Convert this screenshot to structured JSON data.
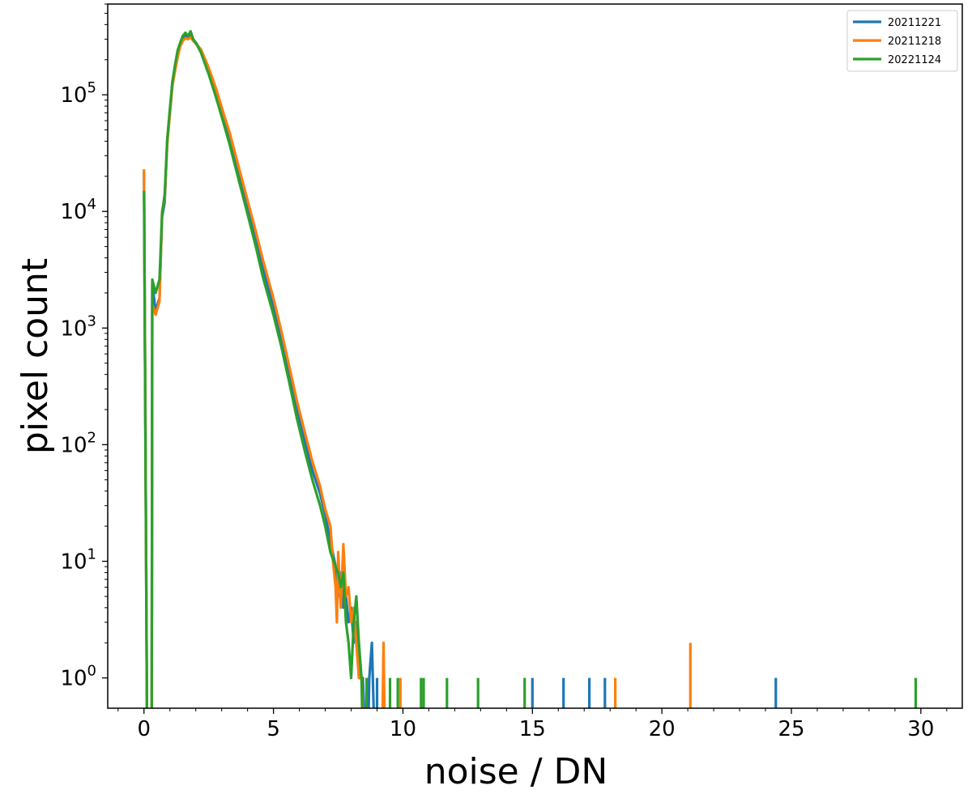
{
  "chart_data": {
    "type": "line",
    "xlabel": "noise / DN",
    "ylabel": "pixel count",
    "xlim": [
      -1.4,
      31.6
    ],
    "ylim": [
      0.55,
      600000
    ],
    "yscale": "log",
    "xticks": [
      0,
      5,
      10,
      15,
      20,
      25,
      30
    ],
    "xtick_labels": [
      "0",
      "5",
      "10",
      "15",
      "20",
      "25",
      "30"
    ],
    "yticks": [
      1,
      10,
      100,
      1000,
      10000,
      100000
    ],
    "ytick_labels": [
      {
        "base": "10",
        "exp": "0"
      },
      {
        "base": "10",
        "exp": "1"
      },
      {
        "base": "10",
        "exp": "2"
      },
      {
        "base": "10",
        "exp": "3"
      },
      {
        "base": "10",
        "exp": "4"
      },
      {
        "base": "10",
        "exp": "5"
      }
    ],
    "grid": false,
    "legend_position": "top-right",
    "series": [
      {
        "name": "20211221",
        "color": "#1f77b4",
        "points": [
          [
            0,
            22000
          ],
          [
            0.12,
            0.3
          ],
          [
            0.3,
            0.3
          ],
          [
            0.32,
            2400
          ],
          [
            0.45,
            1400
          ],
          [
            0.6,
            1800
          ],
          [
            0.7,
            9000
          ],
          [
            0.8,
            12000
          ],
          [
            0.9,
            40000
          ],
          [
            1.0,
            70000
          ],
          [
            1.1,
            130000
          ],
          [
            1.2,
            170000
          ],
          [
            1.3,
            220000
          ],
          [
            1.4,
            270000
          ],
          [
            1.5,
            300000
          ],
          [
            1.6,
            320000
          ],
          [
            1.7,
            310000
          ],
          [
            1.8,
            330000
          ],
          [
            1.9,
            300000
          ],
          [
            2.0,
            280000
          ],
          [
            2.2,
            240000
          ],
          [
            2.5,
            160000
          ],
          [
            2.8,
            100000
          ],
          [
            3.0,
            70000
          ],
          [
            3.3,
            42000
          ],
          [
            3.6,
            24000
          ],
          [
            4.0,
            11000
          ],
          [
            4.3,
            6000
          ],
          [
            4.6,
            3200
          ],
          [
            5.0,
            1500
          ],
          [
            5.3,
            800
          ],
          [
            5.6,
            400
          ],
          [
            5.9,
            200
          ],
          [
            6.2,
            110
          ],
          [
            6.5,
            60
          ],
          [
            6.8,
            38
          ],
          [
            7.0,
            25
          ],
          [
            7.2,
            15
          ],
          [
            7.4,
            9
          ],
          [
            7.5,
            5
          ],
          [
            7.6,
            8
          ],
          [
            7.7,
            4
          ],
          [
            7.8,
            5
          ],
          [
            7.9,
            3
          ],
          [
            8.0,
            4
          ],
          [
            8.1,
            2
          ],
          [
            8.2,
            3
          ],
          [
            8.3,
            1
          ],
          [
            8.45,
            1
          ],
          [
            8.55,
            0.3
          ],
          [
            8.65,
            0.3
          ],
          [
            8.7,
            1
          ],
          [
            8.8,
            2
          ],
          [
            8.9,
            0.3
          ]
        ]
      },
      {
        "name": "20211218",
        "color": "#ff7f0e",
        "points": [
          [
            0,
            23000
          ],
          [
            0.12,
            0.3
          ],
          [
            0.3,
            0.3
          ],
          [
            0.32,
            1600
          ],
          [
            0.45,
            1300
          ],
          [
            0.6,
            1700
          ],
          [
            0.7,
            10000
          ],
          [
            0.8,
            13000
          ],
          [
            0.9,
            38000
          ],
          [
            1.0,
            68000
          ],
          [
            1.1,
            120000
          ],
          [
            1.2,
            160000
          ],
          [
            1.3,
            210000
          ],
          [
            1.4,
            260000
          ],
          [
            1.5,
            290000
          ],
          [
            1.6,
            305000
          ],
          [
            1.7,
            300000
          ],
          [
            1.8,
            310000
          ],
          [
            1.9,
            290000
          ],
          [
            2.0,
            275000
          ],
          [
            2.2,
            245000
          ],
          [
            2.5,
            170000
          ],
          [
            2.8,
            110000
          ],
          [
            3.0,
            78000
          ],
          [
            3.3,
            48000
          ],
          [
            3.6,
            27000
          ],
          [
            4.0,
            12500
          ],
          [
            4.3,
            7000
          ],
          [
            4.6,
            3800
          ],
          [
            5.0,
            1800
          ],
          [
            5.3,
            950
          ],
          [
            5.6,
            480
          ],
          [
            5.9,
            240
          ],
          [
            6.2,
            130
          ],
          [
            6.5,
            72
          ],
          [
            6.8,
            44
          ],
          [
            7.0,
            28
          ],
          [
            7.2,
            20
          ],
          [
            7.3,
            10
          ],
          [
            7.4,
            6
          ],
          [
            7.45,
            3
          ],
          [
            7.5,
            12
          ],
          [
            7.6,
            4
          ],
          [
            7.7,
            14
          ],
          [
            7.8,
            5
          ],
          [
            7.9,
            6
          ],
          [
            8.0,
            3
          ],
          [
            8.1,
            4
          ],
          [
            8.2,
            2
          ],
          [
            8.3,
            1
          ],
          [
            8.4,
            1
          ],
          [
            8.5,
            0.3
          ],
          [
            9.2,
            0.3
          ],
          [
            9.25,
            2
          ],
          [
            9.3,
            0.3
          ]
        ]
      },
      {
        "name": "20221124",
        "color": "#2ca02c",
        "points": [
          [
            0,
            15000
          ],
          [
            0.12,
            0.3
          ],
          [
            0.3,
            0.3
          ],
          [
            0.32,
            2600
          ],
          [
            0.45,
            2000
          ],
          [
            0.6,
            2600
          ],
          [
            0.7,
            9500
          ],
          [
            0.8,
            14000
          ],
          [
            0.9,
            42000
          ],
          [
            1.0,
            75000
          ],
          [
            1.1,
            130000
          ],
          [
            1.2,
            180000
          ],
          [
            1.3,
            240000
          ],
          [
            1.4,
            280000
          ],
          [
            1.5,
            320000
          ],
          [
            1.6,
            340000
          ],
          [
            1.7,
            320000
          ],
          [
            1.8,
            350000
          ],
          [
            1.9,
            300000
          ],
          [
            2.0,
            280000
          ],
          [
            2.2,
            230000
          ],
          [
            2.5,
            150000
          ],
          [
            2.8,
            92000
          ],
          [
            3.0,
            65000
          ],
          [
            3.3,
            38000
          ],
          [
            3.6,
            21000
          ],
          [
            4.0,
            9500
          ],
          [
            4.3,
            5200
          ],
          [
            4.6,
            2700
          ],
          [
            5.0,
            1300
          ],
          [
            5.3,
            700
          ],
          [
            5.6,
            350
          ],
          [
            5.9,
            170
          ],
          [
            6.2,
            90
          ],
          [
            6.5,
            50
          ],
          [
            6.8,
            30
          ],
          [
            7.0,
            20
          ],
          [
            7.2,
            12
          ],
          [
            7.4,
            9
          ],
          [
            7.5,
            8
          ],
          [
            7.6,
            6
          ],
          [
            7.7,
            8
          ],
          [
            7.8,
            3
          ],
          [
            7.9,
            2
          ],
          [
            8.0,
            1
          ],
          [
            8.1,
            3
          ],
          [
            8.2,
            5
          ],
          [
            8.3,
            2
          ],
          [
            8.4,
            1
          ],
          [
            8.45,
            0.3
          ]
        ]
      }
    ],
    "isolated_bins": [
      {
        "series": "20211221",
        "x": 8.6,
        "y": 1
      },
      {
        "series": "20211221",
        "x": 9.0,
        "y": 1
      },
      {
        "series": "20211221",
        "x": 15.0,
        "y": 1
      },
      {
        "series": "20211221",
        "x": 16.2,
        "y": 1
      },
      {
        "series": "20211221",
        "x": 17.2,
        "y": 1
      },
      {
        "series": "20211221",
        "x": 17.8,
        "y": 1
      },
      {
        "series": "20211221",
        "x": 24.4,
        "y": 1
      },
      {
        "series": "20211218",
        "x": 9.9,
        "y": 1
      },
      {
        "series": "20211218",
        "x": 18.2,
        "y": 1
      },
      {
        "series": "20211218",
        "x": 21.1,
        "y": 2
      },
      {
        "series": "20221124",
        "x": 8.6,
        "y": 1
      },
      {
        "series": "20221124",
        "x": 9.5,
        "y": 1
      },
      {
        "series": "20221124",
        "x": 9.8,
        "y": 1
      },
      {
        "series": "20221124",
        "x": 10.7,
        "y": 1
      },
      {
        "series": "20221124",
        "x": 10.8,
        "y": 1
      },
      {
        "series": "20221124",
        "x": 11.7,
        "y": 1
      },
      {
        "series": "20221124",
        "x": 12.9,
        "y": 1
      },
      {
        "series": "20221124",
        "x": 14.7,
        "y": 1
      },
      {
        "series": "20221124",
        "x": 29.8,
        "y": 1
      }
    ]
  }
}
